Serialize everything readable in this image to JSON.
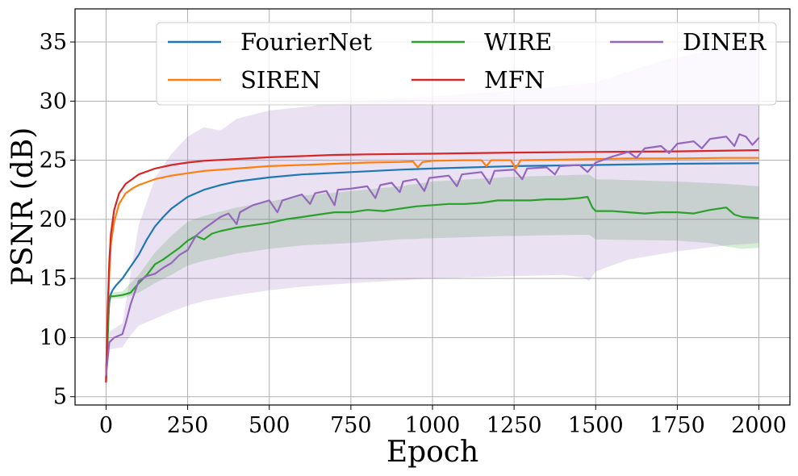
{
  "chart_data": {
    "type": "line",
    "xlabel": "Epoch",
    "ylabel": "PSNR (dB)",
    "xlim": [
      -95,
      2095
    ],
    "ylim": [
      4.3,
      37.8
    ],
    "xticks": [
      0,
      250,
      500,
      750,
      1000,
      1250,
      1500,
      1750,
      2000
    ],
    "yticks": [
      5,
      10,
      15,
      20,
      25,
      30,
      35
    ],
    "grid": true,
    "legend": {
      "placement": "top-right",
      "columns": 3
    },
    "series": [
      {
        "name": "FourierNet",
        "color": "#1f77b4",
        "points": [
          [
            0,
            6.5
          ],
          [
            5,
            11
          ],
          [
            10,
            13
          ],
          [
            15,
            13.7
          ],
          [
            20,
            14
          ],
          [
            30,
            14.4
          ],
          [
            50,
            15
          ],
          [
            75,
            16
          ],
          [
            100,
            17
          ],
          [
            125,
            18.3
          ],
          [
            150,
            19.4
          ],
          [
            175,
            20.2
          ],
          [
            200,
            20.9
          ],
          [
            250,
            21.9
          ],
          [
            300,
            22.5
          ],
          [
            350,
            22.9
          ],
          [
            400,
            23.2
          ],
          [
            500,
            23.55
          ],
          [
            600,
            23.8
          ],
          [
            750,
            24.0
          ],
          [
            900,
            24.2
          ],
          [
            1000,
            24.3
          ],
          [
            1250,
            24.5
          ],
          [
            1500,
            24.6
          ],
          [
            1750,
            24.7
          ],
          [
            2000,
            24.75
          ]
        ],
        "band": null
      },
      {
        "name": "SIREN",
        "color": "#ff7f0e",
        "points": [
          [
            0,
            6.3
          ],
          [
            5,
            12
          ],
          [
            10,
            15.5
          ],
          [
            15,
            18
          ],
          [
            25,
            19.8
          ],
          [
            40,
            21.3
          ],
          [
            60,
            22.2
          ],
          [
            80,
            22.6
          ],
          [
            100,
            22.9
          ],
          [
            150,
            23.4
          ],
          [
            200,
            23.7
          ],
          [
            250,
            23.9
          ],
          [
            300,
            24.1
          ],
          [
            400,
            24.3
          ],
          [
            500,
            24.5
          ],
          [
            600,
            24.6
          ],
          [
            700,
            24.7
          ],
          [
            800,
            24.8
          ],
          [
            900,
            24.85
          ],
          [
            940,
            24.9
          ],
          [
            955,
            24.4
          ],
          [
            970,
            24.85
          ],
          [
            1000,
            24.95
          ],
          [
            1100,
            25.0
          ],
          [
            1150,
            25.0
          ],
          [
            1165,
            24.5
          ],
          [
            1180,
            25.0
          ],
          [
            1240,
            25.0
          ],
          [
            1255,
            24.3
          ],
          [
            1270,
            25.0
          ],
          [
            1400,
            25.05
          ],
          [
            1500,
            25.1
          ],
          [
            1600,
            25.15
          ],
          [
            1750,
            25.15
          ],
          [
            1900,
            25.2
          ],
          [
            2000,
            25.2
          ]
        ],
        "band": null
      },
      {
        "name": "WIRE",
        "color": "#2ca02c",
        "points": [
          [
            0,
            6.2
          ],
          [
            10,
            13.5
          ],
          [
            25,
            13.5
          ],
          [
            50,
            13.6
          ],
          [
            75,
            13.8
          ],
          [
            100,
            14.6
          ],
          [
            125,
            15.3
          ],
          [
            150,
            16.2
          ],
          [
            175,
            16.6
          ],
          [
            200,
            17.1
          ],
          [
            225,
            17.6
          ],
          [
            250,
            18.2
          ],
          [
            275,
            18.6
          ],
          [
            300,
            18.3
          ],
          [
            325,
            18.8
          ],
          [
            350,
            19.0
          ],
          [
            400,
            19.3
          ],
          [
            450,
            19.5
          ],
          [
            500,
            19.7
          ],
          [
            550,
            20.0
          ],
          [
            600,
            20.2
          ],
          [
            650,
            20.4
          ],
          [
            700,
            20.6
          ],
          [
            750,
            20.6
          ],
          [
            800,
            20.8
          ],
          [
            850,
            20.7
          ],
          [
            900,
            20.9
          ],
          [
            950,
            21.1
          ],
          [
            1000,
            21.2
          ],
          [
            1050,
            21.3
          ],
          [
            1100,
            21.3
          ],
          [
            1150,
            21.4
          ],
          [
            1200,
            21.6
          ],
          [
            1250,
            21.6
          ],
          [
            1300,
            21.6
          ],
          [
            1350,
            21.7
          ],
          [
            1400,
            21.7
          ],
          [
            1450,
            21.8
          ],
          [
            1475,
            21.9
          ],
          [
            1490,
            21.0
          ],
          [
            1500,
            20.7
          ],
          [
            1550,
            20.7
          ],
          [
            1600,
            20.6
          ],
          [
            1650,
            20.5
          ],
          [
            1700,
            20.6
          ],
          [
            1750,
            20.6
          ],
          [
            1800,
            20.5
          ],
          [
            1850,
            20.8
          ],
          [
            1900,
            21.0
          ],
          [
            1925,
            20.4
          ],
          [
            1950,
            20.2
          ],
          [
            2000,
            20.1
          ]
        ],
        "band": {
          "color": "#2ca02c",
          "lower": [
            [
              0,
              6.2
            ],
            [
              10,
              13.3
            ],
            [
              50,
              13.3
            ],
            [
              100,
              13.8
            ],
            [
              150,
              14.6
            ],
            [
              200,
              15.3
            ],
            [
              250,
              16.1
            ],
            [
              300,
              16.5
            ],
            [
              400,
              17.1
            ],
            [
              500,
              17.5
            ],
            [
              600,
              17.8
            ],
            [
              750,
              18.0
            ],
            [
              900,
              18.3
            ],
            [
              1000,
              18.4
            ],
            [
              1250,
              18.6
            ],
            [
              1480,
              18.7
            ],
            [
              1500,
              18.3
            ],
            [
              1750,
              18.2
            ],
            [
              1850,
              18.0
            ],
            [
              1900,
              17.7
            ],
            [
              1950,
              17.5
            ],
            [
              2000,
              17.6
            ]
          ],
          "upper": [
            [
              0,
              6.2
            ],
            [
              10,
              13.8
            ],
            [
              50,
              13.9
            ],
            [
              100,
              15.3
            ],
            [
              150,
              17.2
            ],
            [
              200,
              18.6
            ],
            [
              250,
              19.8
            ],
            [
              300,
              20.3
            ],
            [
              400,
              21.0
            ],
            [
              500,
              21.5
            ],
            [
              600,
              22.0
            ],
            [
              750,
              22.4
            ],
            [
              900,
              22.8
            ],
            [
              1000,
              23.2
            ],
            [
              1250,
              23.6
            ],
            [
              1480,
              23.8
            ],
            [
              1500,
              23.4
            ],
            [
              1750,
              23.2
            ],
            [
              1900,
              23.0
            ],
            [
              2000,
              22.8
            ]
          ]
        }
      },
      {
        "name": "MFN",
        "color": "#d62728",
        "points": [
          [
            0,
            6.2
          ],
          [
            5,
            12.5
          ],
          [
            10,
            16.5
          ],
          [
            15,
            18.8
          ],
          [
            25,
            20.8
          ],
          [
            40,
            22.2
          ],
          [
            60,
            23.0
          ],
          [
            80,
            23.4
          ],
          [
            100,
            23.8
          ],
          [
            150,
            24.3
          ],
          [
            200,
            24.6
          ],
          [
            250,
            24.8
          ],
          [
            300,
            24.95
          ],
          [
            400,
            25.1
          ],
          [
            500,
            25.25
          ],
          [
            600,
            25.35
          ],
          [
            700,
            25.45
          ],
          [
            800,
            25.5
          ],
          [
            1000,
            25.55
          ],
          [
            1250,
            25.65
          ],
          [
            1500,
            25.7
          ],
          [
            1750,
            25.75
          ],
          [
            2000,
            25.85
          ]
        ],
        "band": null
      },
      {
        "name": "DINER",
        "color": "#9467bd",
        "points": [
          [
            0,
            6.8
          ],
          [
            10,
            9.6
          ],
          [
            25,
            10.0
          ],
          [
            50,
            10.3
          ],
          [
            60,
            11.2
          ],
          [
            75,
            12.8
          ],
          [
            100,
            14.8
          ],
          [
            125,
            15.2
          ],
          [
            150,
            15.4
          ],
          [
            175,
            15.9
          ],
          [
            200,
            16.3
          ],
          [
            225,
            17.0
          ],
          [
            250,
            17.4
          ],
          [
            275,
            18.6
          ],
          [
            300,
            19.2
          ],
          [
            325,
            19.7
          ],
          [
            350,
            20.2
          ],
          [
            375,
            20.5
          ],
          [
            400,
            19.6
          ],
          [
            410,
            20.6
          ],
          [
            450,
            21.2
          ],
          [
            500,
            21.6
          ],
          [
            525,
            20.6
          ],
          [
            540,
            21.6
          ],
          [
            575,
            21.9
          ],
          [
            600,
            22.1
          ],
          [
            625,
            21.3
          ],
          [
            640,
            22.2
          ],
          [
            675,
            22.4
          ],
          [
            700,
            21.2
          ],
          [
            710,
            22.5
          ],
          [
            750,
            22.6
          ],
          [
            800,
            22.8
          ],
          [
            825,
            21.8
          ],
          [
            840,
            22.9
          ],
          [
            875,
            23.1
          ],
          [
            900,
            22.3
          ],
          [
            910,
            23.2
          ],
          [
            950,
            23.4
          ],
          [
            975,
            22.4
          ],
          [
            990,
            23.5
          ],
          [
            1050,
            23.7
          ],
          [
            1075,
            22.8
          ],
          [
            1090,
            23.8
          ],
          [
            1150,
            24.0
          ],
          [
            1175,
            23.0
          ],
          [
            1190,
            24.1
          ],
          [
            1250,
            24.2
          ],
          [
            1275,
            23.4
          ],
          [
            1290,
            24.3
          ],
          [
            1350,
            24.4
          ],
          [
            1375,
            23.8
          ],
          [
            1390,
            24.5
          ],
          [
            1450,
            24.6
          ],
          [
            1475,
            24.0
          ],
          [
            1500,
            24.8
          ],
          [
            1550,
            25.3
          ],
          [
            1600,
            25.7
          ],
          [
            1625,
            25.2
          ],
          [
            1650,
            26.0
          ],
          [
            1700,
            26.2
          ],
          [
            1725,
            25.6
          ],
          [
            1750,
            26.4
          ],
          [
            1800,
            26.6
          ],
          [
            1825,
            26.0
          ],
          [
            1850,
            26.8
          ],
          [
            1900,
            27.0
          ],
          [
            1925,
            26.2
          ],
          [
            1940,
            27.2
          ],
          [
            1960,
            27.0
          ],
          [
            1980,
            26.3
          ],
          [
            2000,
            26.9
          ]
        ],
        "band": {
          "color": "#9467bd",
          "lower": [
            [
              0,
              6.8
            ],
            [
              10,
              9.0
            ],
            [
              50,
              9.2
            ],
            [
              75,
              10.2
            ],
            [
              100,
              11.0
            ],
            [
              150,
              11.6
            ],
            [
              200,
              12.2
            ],
            [
              250,
              12.7
            ],
            [
              300,
              13.1
            ],
            [
              400,
              13.6
            ],
            [
              500,
              14.0
            ],
            [
              600,
              14.3
            ],
            [
              750,
              14.6
            ],
            [
              1000,
              15.0
            ],
            [
              1250,
              15.2
            ],
            [
              1400,
              15.3
            ],
            [
              1460,
              15.1
            ],
            [
              1480,
              14.8
            ],
            [
              1500,
              15.6
            ],
            [
              1600,
              16.6
            ],
            [
              1750,
              17.3
            ],
            [
              1900,
              17.8
            ],
            [
              2000,
              18.0
            ]
          ],
          "upper": [
            [
              0,
              6.8
            ],
            [
              10,
              10.5
            ],
            [
              50,
              11.2
            ],
            [
              100,
              19.5
            ],
            [
              150,
              23.5
            ],
            [
              200,
              25.5
            ],
            [
              250,
              27.0
            ],
            [
              300,
              27.8
            ],
            [
              350,
              27.5
            ],
            [
              400,
              28.5
            ],
            [
              500,
              29.2
            ],
            [
              600,
              29.5
            ],
            [
              700,
              29.8
            ],
            [
              800,
              30.0
            ],
            [
              900,
              30.2
            ],
            [
              1000,
              30.4
            ],
            [
              1100,
              30.6
            ],
            [
              1200,
              30.8
            ],
            [
              1300,
              31.0
            ],
            [
              1400,
              31.3
            ],
            [
              1500,
              31.6
            ],
            [
              1600,
              32.5
            ],
            [
              1700,
              33.4
            ],
            [
              1800,
              34.0
            ],
            [
              1900,
              34.6
            ],
            [
              2000,
              35.2
            ]
          ]
        }
      }
    ]
  }
}
